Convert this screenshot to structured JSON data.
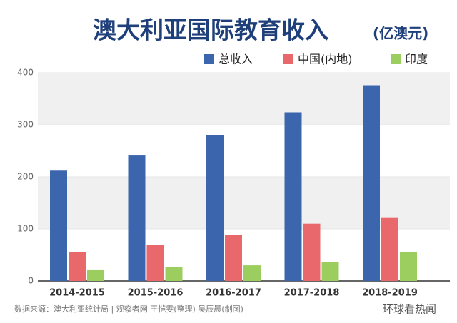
{
  "chart_data": {
    "type": "bar",
    "title": "澳大利亚国际教育收入",
    "unit": "(亿澳元)",
    "categories": [
      "2014-2015",
      "2015-2016",
      "2016-2017",
      "2017-2018",
      "2018-2019"
    ],
    "series": [
      {
        "name": "总收入",
        "color": "#3b65ad",
        "values": [
          212,
          241,
          280,
          324,
          376
        ]
      },
      {
        "name": "中国(内地)",
        "color": "#e8686b",
        "values": [
          55,
          69,
          89,
          110,
          121
        ]
      },
      {
        "name": "印度",
        "color": "#9ccd5f",
        "values": [
          22,
          27,
          30,
          37,
          55
        ]
      }
    ],
    "ylim": [
      0,
      400
    ],
    "yticks": [
      0,
      100,
      200,
      300,
      400
    ],
    "grid": true,
    "source": "数据来源：澳大利亚统计局  |  观察者网 王恺雯(整理) 吴辰晨(制图)",
    "watermark": "环球看热闻"
  }
}
